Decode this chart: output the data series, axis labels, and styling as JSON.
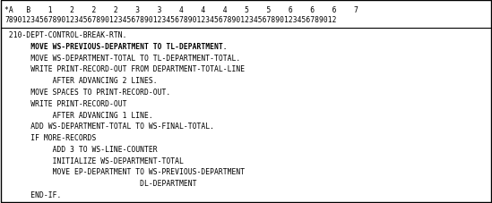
{
  "header_row1": "*A   B    1    2    2    2    3    3    4    4    4    5    5    6    6    6    7",
  "header_row2": "7890123456789012345678901234567890123456789012345678901234567890123456789012",
  "lines": [
    {
      "text": " 210-DEPT-CONTROL-BREAK-RTN.",
      "bold": false
    },
    {
      "text": "      MOVE WS-PREVIOUS-DEPARTMENT TO TL-DEPARTMENT.",
      "bold": true
    },
    {
      "text": "      MOVE WS-DEPARTMENT-TOTAL TO TL-DEPARTMENT-TOTAL.",
      "bold": false
    },
    {
      "text": "      WRITE PRINT-RECORD-OUT FROM DEPARTMENT-TOTAL-LINE",
      "bold": false
    },
    {
      "text": "           AFTER ADVANCING 2 LINES.",
      "bold": false
    },
    {
      "text": "      MOVE SPACES TO PRINT-RECORD-OUT.",
      "bold": false
    },
    {
      "text": "      WRITE PRINT-RECORD-OUT",
      "bold": false
    },
    {
      "text": "           AFTER ADVANCING 1 LINE.",
      "bold": false
    },
    {
      "text": "      ADD WS-DEPARTMENT-TOTAL TO WS-FINAL-TOTAL.",
      "bold": false
    },
    {
      "text": "      IF MORE-RECORDS",
      "bold": false
    },
    {
      "text": "           ADD 3 TO WS-LINE-COUNTER",
      "bold": false
    },
    {
      "text": "           INITIALIZE WS-DEPARTMENT-TOTAL",
      "bold": false
    },
    {
      "text": "           MOVE EP-DEPARTMENT TO WS-PREVIOUS-DEPARTMENT",
      "bold": false
    },
    {
      "text": "                               DL-DEPARTMENT",
      "bold": false
    },
    {
      "text": "      END-IF.",
      "bold": false
    }
  ],
  "bg_color": "#ffffff",
  "border_color": "#000000",
  "text_color": "#000000",
  "font_size": 5.8,
  "header_font_size": 5.8,
  "fig_width": 5.49,
  "fig_height": 2.28,
  "dpi": 100
}
